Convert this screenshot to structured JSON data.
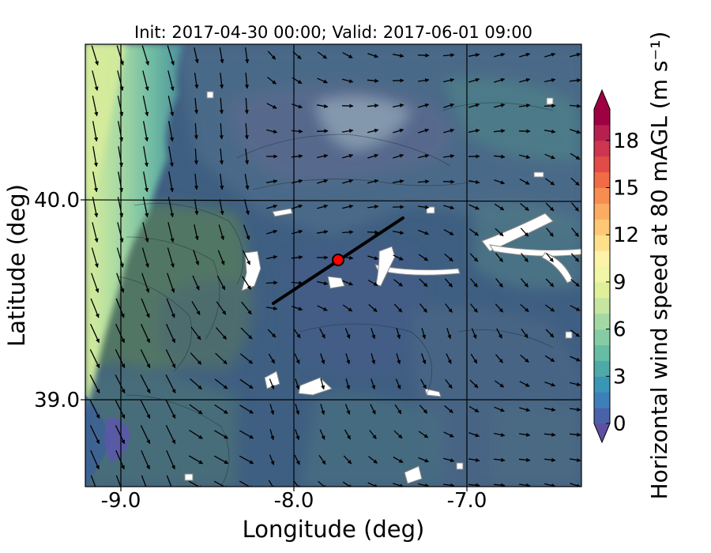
{
  "title": "Init: 2017-04-30 00:00; Valid: 2017-06-01 09:00",
  "xlabel": "Longitude (deg)",
  "ylabel": "Latitude (deg)",
  "x_ticks": [
    {
      "value": -9.0,
      "label": "-9.0"
    },
    {
      "value": -8.0,
      "label": "-8.0"
    },
    {
      "value": -7.0,
      "label": "-7.0"
    }
  ],
  "y_ticks": [
    {
      "value": 40.0,
      "label": "40.0"
    },
    {
      "value": 39.0,
      "label": "39.0"
    }
  ],
  "colorbar": {
    "label": "Horizontal wind speed at 80 mAGL (m s⁻¹)",
    "ticks": [
      {
        "value": 0,
        "label": "0"
      },
      {
        "value": 3,
        "label": "3"
      },
      {
        "value": 6,
        "label": "6"
      },
      {
        "value": 9,
        "label": "9"
      },
      {
        "value": 12,
        "label": "12"
      },
      {
        "value": 15,
        "label": "15"
      },
      {
        "value": 18,
        "label": "18"
      }
    ],
    "range": [
      0,
      20
    ],
    "extend": "both",
    "levels": [
      {
        "value": 0,
        "color": "#4a63a8"
      },
      {
        "value": 1,
        "color": "#3f7fb9"
      },
      {
        "value": 2,
        "color": "#3a96b5"
      },
      {
        "value": 3,
        "color": "#4eaaa9"
      },
      {
        "value": 4,
        "color": "#66bda4"
      },
      {
        "value": 5,
        "color": "#86cba4"
      },
      {
        "value": 6,
        "color": "#a4d8a3"
      },
      {
        "value": 7,
        "color": "#c5e5a0"
      },
      {
        "value": 8,
        "color": "#e0f09a"
      },
      {
        "value": 9,
        "color": "#f1f6a6"
      },
      {
        "value": 10,
        "color": "#fdf3a8"
      },
      {
        "value": 11,
        "color": "#fee08b"
      },
      {
        "value": 12,
        "color": "#fdc775"
      },
      {
        "value": 13,
        "color": "#fcab62"
      },
      {
        "value": 14,
        "color": "#f88d52"
      },
      {
        "value": 15,
        "color": "#f06c46"
      },
      {
        "value": 16,
        "color": "#e14b48"
      },
      {
        "value": 17,
        "color": "#cd3550"
      },
      {
        "value": 18,
        "color": "#b5204f"
      },
      {
        "value": 19,
        "color": "#9e0142"
      }
    ],
    "under_color": "#5e4fa2",
    "over_color": "#9e0142"
  },
  "chart_data": {
    "type": "heatmap",
    "title": "Init: 2017-04-30 00:00; Valid: 2017-06-01 09:00",
    "xlabel": "Longitude (deg)",
    "ylabel": "Latitude (deg)",
    "xlim": [
      -9.25,
      -6.3
    ],
    "ylim": [
      38.55,
      40.8
    ],
    "grid": true,
    "overlays": [
      "wind vectors (arrows)",
      "terrain shading",
      "cross-section line",
      "site marker"
    ],
    "cross_section": {
      "start": [
        -8.12,
        39.48
      ],
      "end": [
        -7.37,
        39.92
      ]
    },
    "site": {
      "lon": -7.74,
      "lat": 39.69,
      "color": "#ff0000"
    }
  }
}
